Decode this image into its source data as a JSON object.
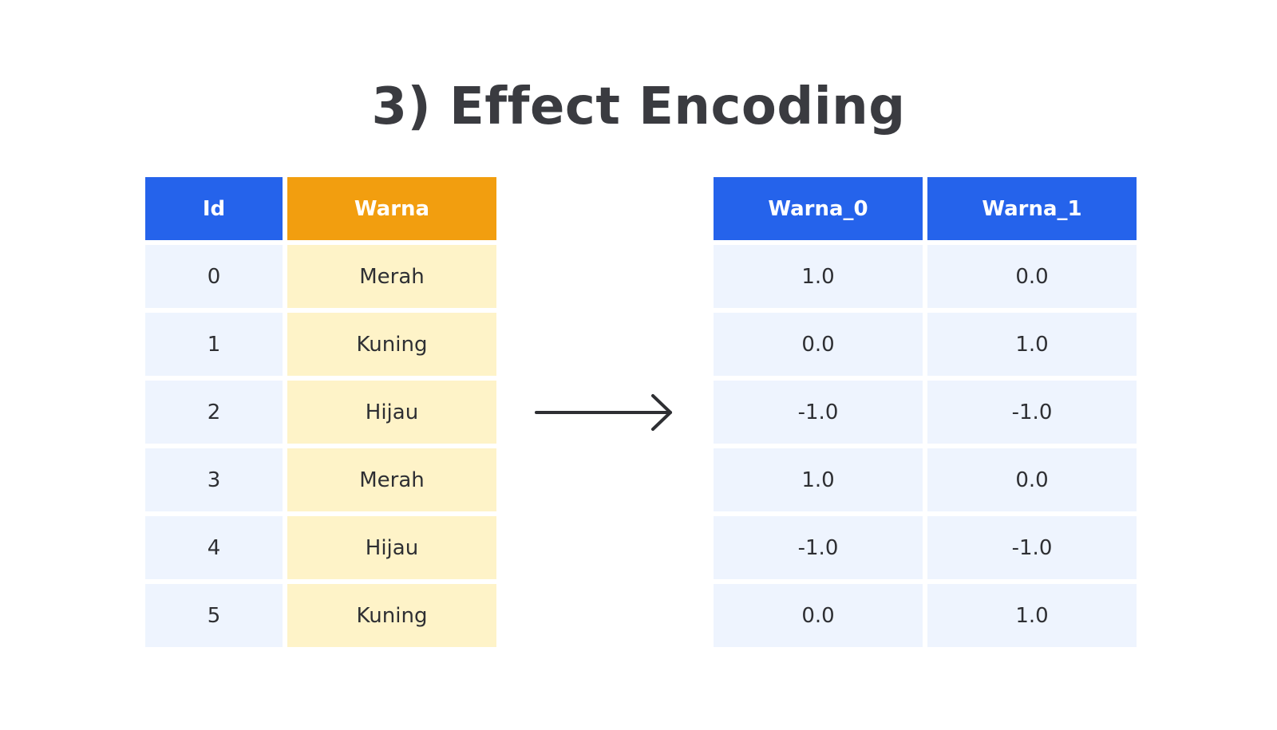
{
  "title": "3) Effect Encoding",
  "colors": {
    "header_blue": "#2563eb",
    "header_orange": "#f29e0f",
    "cell_blue": "#eef4fe",
    "cell_yellow": "#fef3c8",
    "text_dark": "#2e2f33",
    "arrow": "#2e2f33"
  },
  "left_table": {
    "headers": [
      "Id",
      "Warna"
    ],
    "rows": [
      [
        "0",
        "Merah"
      ],
      [
        "1",
        "Kuning"
      ],
      [
        "2",
        "Hijau"
      ],
      [
        "3",
        "Merah"
      ],
      [
        "4",
        "Hijau"
      ],
      [
        "5",
        "Kuning"
      ]
    ]
  },
  "right_table": {
    "headers": [
      "Warna_0",
      "Warna_1"
    ],
    "rows": [
      [
        "1.0",
        "0.0"
      ],
      [
        "0.0",
        "1.0"
      ],
      [
        "-1.0",
        "-1.0"
      ],
      [
        "1.0",
        "0.0"
      ],
      [
        "-1.0",
        "-1.0"
      ],
      [
        "0.0",
        "1.0"
      ]
    ]
  },
  "arrow_icon": "arrow-right-icon"
}
